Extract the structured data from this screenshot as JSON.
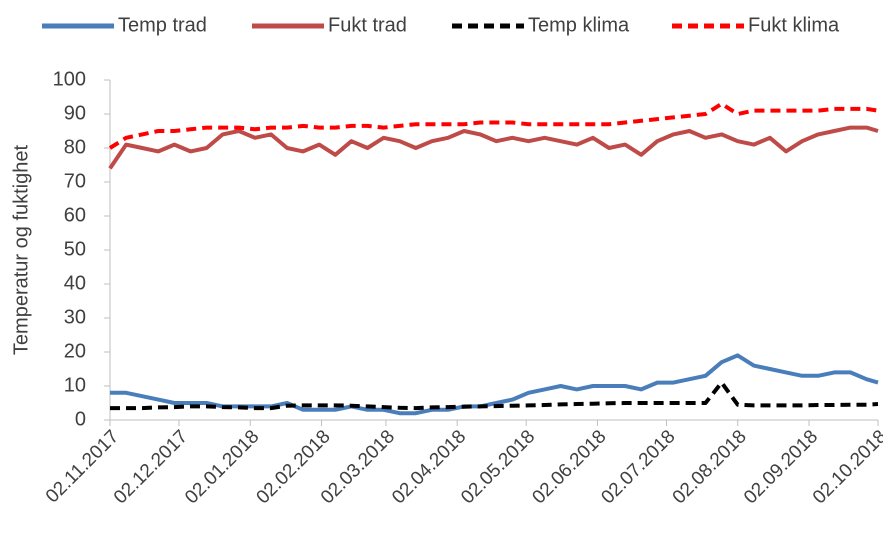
{
  "chart_data": {
    "type": "line",
    "ylabel": "Temperatur og fuktighet",
    "x": [
      "2017-11-02",
      "2017-11-09",
      "2017-11-16",
      "2017-11-23",
      "2017-11-30",
      "2017-12-07",
      "2017-12-14",
      "2017-12-21",
      "2017-12-28",
      "2018-01-04",
      "2018-01-11",
      "2018-01-18",
      "2018-01-25",
      "2018-02-01",
      "2018-02-08",
      "2018-02-15",
      "2018-02-22",
      "2018-03-01",
      "2018-03-08",
      "2018-03-15",
      "2018-03-22",
      "2018-03-29",
      "2018-04-05",
      "2018-04-12",
      "2018-04-19",
      "2018-04-26",
      "2018-05-03",
      "2018-05-10",
      "2018-05-17",
      "2018-05-24",
      "2018-05-31",
      "2018-06-07",
      "2018-06-14",
      "2018-06-21",
      "2018-06-28",
      "2018-07-05",
      "2018-07-12",
      "2018-07-19",
      "2018-07-26",
      "2018-08-02",
      "2018-08-09",
      "2018-08-16",
      "2018-08-23",
      "2018-08-30",
      "2018-09-06",
      "2018-09-13",
      "2018-09-20",
      "2018-09-27",
      "2018-10-02"
    ],
    "series": [
      {
        "name": "Temp trad",
        "color": "#4a7ebb",
        "dashed": false,
        "values": [
          8,
          8,
          7,
          6,
          5,
          5,
          5,
          4,
          4,
          4,
          4,
          5,
          3,
          3,
          3,
          4,
          3,
          3,
          2,
          2,
          3,
          3,
          4,
          4,
          5,
          6,
          8,
          9,
          10,
          9,
          10,
          10,
          10,
          9,
          11,
          11,
          12,
          13,
          17,
          19,
          16,
          15,
          14,
          13,
          13,
          14,
          14,
          12,
          11
        ]
      },
      {
        "name": "Fukt trad",
        "color": "#be4b48",
        "dashed": false,
        "values": [
          74,
          81,
          80,
          79,
          81,
          79,
          80,
          84,
          85,
          83,
          84,
          80,
          79,
          81,
          78,
          82,
          80,
          83,
          82,
          80,
          82,
          83,
          85,
          84,
          82,
          83,
          82,
          83,
          82,
          81,
          83,
          80,
          81,
          78,
          82,
          84,
          85,
          83,
          84,
          82,
          81,
          83,
          79,
          82,
          84,
          85,
          86,
          86,
          85
        ]
      },
      {
        "name": "Temp klima",
        "color": "#000000",
        "dashed": true,
        "values": [
          3.5,
          3.5,
          3.5,
          3.7,
          3.8,
          4,
          4,
          3.8,
          3.7,
          3.5,
          3.5,
          4.2,
          4.3,
          4.3,
          4.3,
          4.2,
          4,
          3.8,
          3.6,
          3.5,
          3.7,
          3.8,
          3.9,
          4,
          4.1,
          4.2,
          4.3,
          4.4,
          4.6,
          4.7,
          4.8,
          4.9,
          5,
          5,
          5,
          5,
          5,
          5,
          11,
          4.5,
          4.3,
          4.3,
          4.3,
          4.3,
          4.4,
          4.4,
          4.5,
          4.5,
          4.7
        ]
      },
      {
        "name": "Fukt klima",
        "color": "#ff0000",
        "dashed": true,
        "values": [
          80,
          83,
          84,
          85,
          85,
          85.5,
          86,
          86,
          86,
          85.5,
          86,
          86,
          86.5,
          86,
          86,
          86.5,
          86.5,
          86,
          86.5,
          87,
          87,
          87,
          87,
          87.5,
          87.5,
          87.5,
          87,
          87,
          87,
          87,
          87,
          87,
          87.5,
          88,
          88.5,
          89,
          89.5,
          90,
          93,
          90,
          91,
          91,
          91,
          91,
          91,
          91.5,
          91.5,
          91.5,
          91
        ]
      }
    ],
    "xlim": [
      "2017-11-02",
      "2018-10-02"
    ],
    "xticks": [
      {
        "value": "2017-11-02",
        "label": "02.11.2017"
      },
      {
        "value": "2017-12-02",
        "label": "02.12.2017"
      },
      {
        "value": "2018-01-02",
        "label": "02.01.2018"
      },
      {
        "value": "2018-02-02",
        "label": "02.02.2018"
      },
      {
        "value": "2018-03-02",
        "label": "02.03.2018"
      },
      {
        "value": "2018-04-02",
        "label": "02.04.2018"
      },
      {
        "value": "2018-05-02",
        "label": "02.05.2018"
      },
      {
        "value": "2018-06-02",
        "label": "02.06.2018"
      },
      {
        "value": "2018-07-02",
        "label": "02.07.2018"
      },
      {
        "value": "2018-08-02",
        "label": "02.08.2018"
      },
      {
        "value": "2018-09-02",
        "label": "02.09.2018"
      },
      {
        "value": "2018-10-02",
        "label": "02.10.2018"
      }
    ],
    "ylim": [
      0,
      100
    ],
    "yticks": [
      0,
      10,
      20,
      30,
      40,
      50,
      60,
      70,
      80,
      90,
      100
    ],
    "grid": false,
    "legend": "top"
  }
}
